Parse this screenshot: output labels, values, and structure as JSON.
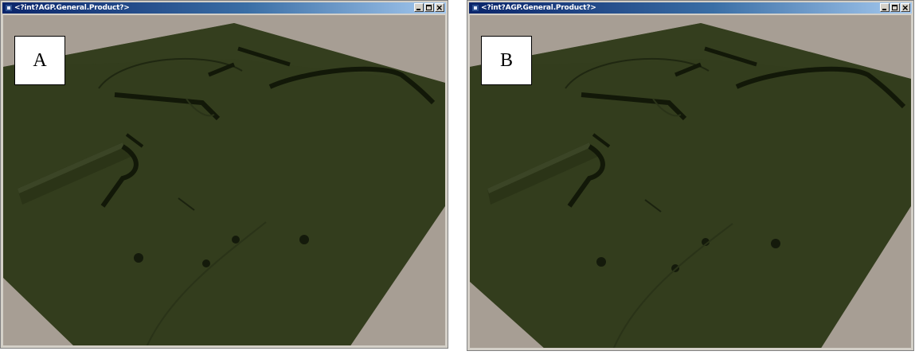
{
  "windows": [
    {
      "title": "<?int?AGP.General.Product?>",
      "label": "A",
      "buttons": [
        "minimize",
        "maximize",
        "close"
      ]
    },
    {
      "title": "<?int?AGP.General.Product?>",
      "label": "B",
      "buttons": [
        "minimize",
        "maximize",
        "close"
      ]
    }
  ],
  "colors": {
    "terrain": "#333d1d",
    "background": "#a79e94",
    "titlebar_start": "#0a246a",
    "titlebar_end": "#a6caf0"
  }
}
